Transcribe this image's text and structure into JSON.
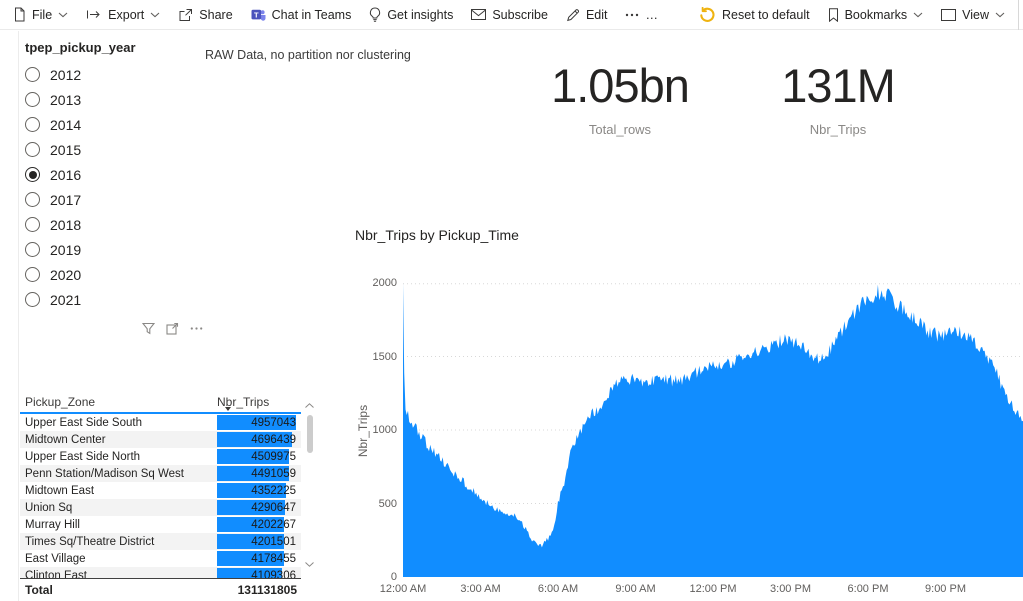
{
  "toolbar": {
    "left": [
      {
        "label": "File",
        "icon": "file",
        "chevron": true
      },
      {
        "label": "Export",
        "icon": "export",
        "chevron": true
      },
      {
        "label": "Share",
        "icon": "share",
        "chevron": false
      },
      {
        "label": "Chat in Teams",
        "icon": "teams",
        "chevron": false
      },
      {
        "label": "Get insights",
        "icon": "bulb",
        "chevron": false
      },
      {
        "label": "Subscribe",
        "icon": "envelope",
        "chevron": false
      },
      {
        "label": "Edit",
        "icon": "pencil",
        "chevron": false
      },
      {
        "label": "…",
        "icon": "more",
        "chevron": false
      }
    ],
    "right": [
      {
        "label": "Reset to default",
        "icon": "reset",
        "chevron": false
      },
      {
        "label": "Bookmarks",
        "icon": "bookmark",
        "chevron": true
      },
      {
        "label": "View",
        "icon": "view",
        "chevron": true
      }
    ]
  },
  "slicer": {
    "title": "tpep_pickup_year",
    "options": [
      "2012",
      "2013",
      "2014",
      "2015",
      "2016",
      "2017",
      "2018",
      "2019",
      "2020",
      "2021"
    ],
    "selected": "2016"
  },
  "note": {
    "text": "RAW Data, no partition nor clustering"
  },
  "kpis": [
    {
      "value": "1.05bn",
      "label": "Total_rows"
    },
    {
      "value": "131M",
      "label": "Nbr_Trips"
    }
  ],
  "table": {
    "columns": [
      "Pickup_Zone",
      "Nbr_Trips"
    ],
    "sort": {
      "column": "Nbr_Trips",
      "direction": "desc"
    },
    "rows": [
      {
        "zone": "Upper East Side South",
        "trips": "4957043"
      },
      {
        "zone": "Midtown Center",
        "trips": "4696439"
      },
      {
        "zone": "Upper East Side North",
        "trips": "4509975"
      },
      {
        "zone": "Penn Station/Madison Sq West",
        "trips": "4491059"
      },
      {
        "zone": "Midtown East",
        "trips": "4352225"
      },
      {
        "zone": "Union Sq",
        "trips": "4290647"
      },
      {
        "zone": "Murray Hill",
        "trips": "4202267"
      },
      {
        "zone": "Times Sq/Theatre District",
        "trips": "4201501"
      },
      {
        "zone": "East Village",
        "trips": "4178455"
      },
      {
        "zone": "Clinton East",
        "trips": "4109306"
      }
    ],
    "total_label": "Total",
    "total_value": "131131805"
  },
  "chart_data": {
    "type": "area",
    "title": "Nbr_Trips by Pickup_Time",
    "xlabel": "Pickup_Time",
    "ylabel": "Nbr_Trips",
    "x_ticks": [
      "12:00 AM",
      "3:00 AM",
      "6:00 AM",
      "9:00 AM",
      "12:00 PM",
      "3:00 PM",
      "6:00 PM",
      "9:00 PM"
    ],
    "x_tick_minutes": [
      0,
      180,
      360,
      540,
      720,
      900,
      1080,
      1260
    ],
    "y_ticks": [
      0,
      500,
      1000,
      1500,
      2000
    ],
    "xlim": [
      0,
      1440
    ],
    "ylim": [
      0,
      2000
    ],
    "grid": "dotted-horizontal",
    "legend": "none",
    "color": "#118DFF",
    "noise_amplitude": 60,
    "series": [
      {
        "name": "Nbr_Trips",
        "x_unit": "minute_of_day",
        "points": [
          [
            0,
            2000
          ],
          [
            4,
            1150
          ],
          [
            15,
            1085
          ],
          [
            30,
            1010
          ],
          [
            45,
            950
          ],
          [
            60,
            885
          ],
          [
            75,
            840
          ],
          [
            90,
            795
          ],
          [
            105,
            745
          ],
          [
            120,
            700
          ],
          [
            135,
            660
          ],
          [
            150,
            620
          ],
          [
            165,
            580
          ],
          [
            180,
            540
          ],
          [
            195,
            505
          ],
          [
            210,
            475
          ],
          [
            225,
            445
          ],
          [
            240,
            420
          ],
          [
            250,
            435
          ],
          [
            260,
            415
          ],
          [
            275,
            370
          ],
          [
            290,
            300
          ],
          [
            300,
            255
          ],
          [
            310,
            220
          ],
          [
            320,
            210
          ],
          [
            330,
            235
          ],
          [
            340,
            275
          ],
          [
            350,
            330
          ],
          [
            360,
            510
          ],
          [
            370,
            590
          ],
          [
            380,
            700
          ],
          [
            390,
            850
          ],
          [
            400,
            925
          ],
          [
            410,
            985
          ],
          [
            420,
            1030
          ],
          [
            430,
            1090
          ],
          [
            440,
            1120
          ],
          [
            450,
            1135
          ],
          [
            460,
            1150
          ],
          [
            470,
            1200
          ],
          [
            480,
            1265
          ],
          [
            495,
            1305
          ],
          [
            510,
            1330
          ],
          [
            525,
            1345
          ],
          [
            540,
            1350
          ],
          [
            560,
            1330
          ],
          [
            580,
            1325
          ],
          [
            600,
            1340
          ],
          [
            620,
            1335
          ],
          [
            640,
            1345
          ],
          [
            660,
            1355
          ],
          [
            680,
            1385
          ],
          [
            700,
            1415
          ],
          [
            720,
            1450
          ],
          [
            735,
            1445
          ],
          [
            750,
            1455
          ],
          [
            765,
            1470
          ],
          [
            780,
            1495
          ],
          [
            795,
            1480
          ],
          [
            810,
            1505
          ],
          [
            825,
            1535
          ],
          [
            840,
            1550
          ],
          [
            855,
            1565
          ],
          [
            870,
            1600
          ],
          [
            885,
            1615
          ],
          [
            900,
            1620
          ],
          [
            915,
            1585
          ],
          [
            930,
            1555
          ],
          [
            945,
            1515
          ],
          [
            960,
            1475
          ],
          [
            975,
            1490
          ],
          [
            990,
            1535
          ],
          [
            1005,
            1605
          ],
          [
            1020,
            1680
          ],
          [
            1035,
            1755
          ],
          [
            1050,
            1810
          ],
          [
            1065,
            1855
          ],
          [
            1080,
            1885
          ],
          [
            1095,
            1920
          ],
          [
            1110,
            1940
          ],
          [
            1120,
            1925
          ],
          [
            1135,
            1885
          ],
          [
            1150,
            1855
          ],
          [
            1165,
            1820
          ],
          [
            1180,
            1780
          ],
          [
            1195,
            1730
          ],
          [
            1210,
            1690
          ],
          [
            1225,
            1665
          ],
          [
            1240,
            1645
          ],
          [
            1255,
            1650
          ],
          [
            1270,
            1670
          ],
          [
            1285,
            1675
          ],
          [
            1300,
            1645
          ],
          [
            1315,
            1615
          ],
          [
            1330,
            1590
          ],
          [
            1345,
            1555
          ],
          [
            1360,
            1490
          ],
          [
            1375,
            1405
          ],
          [
            1390,
            1310
          ],
          [
            1405,
            1215
          ],
          [
            1420,
            1150
          ],
          [
            1432,
            1105
          ],
          [
            1439,
            1085
          ]
        ]
      }
    ]
  },
  "colors": {
    "accent": "#118DFF",
    "table_bar": "#118DFF",
    "reset_icon": "#EFB310"
  }
}
